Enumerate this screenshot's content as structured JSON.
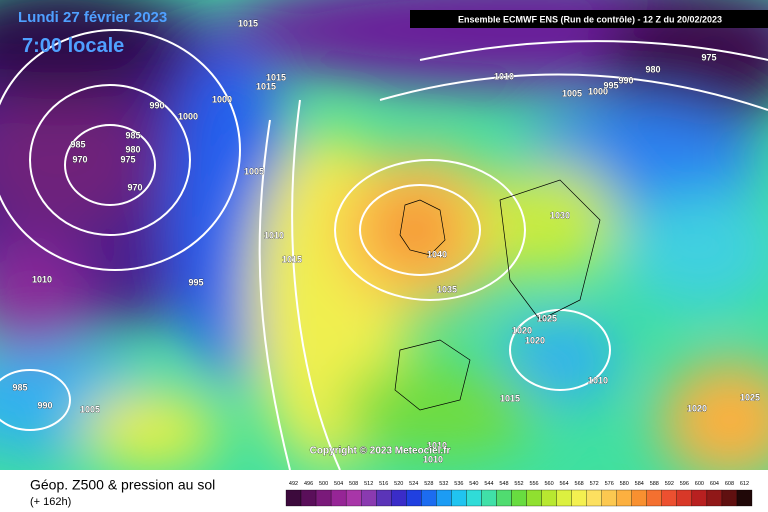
{
  "header": {
    "date": "Lundi 27 février 2023",
    "time": "7:00 locale",
    "run": "Ensemble ECMWF ENS  (Run de contrôle)  -  12 Z du 20/02/2023"
  },
  "copyright": "Copyright © 2023 Meteociel.fr",
  "footer": {
    "title": "Géop. Z500 & pression au sol",
    "lead": "(+ 162h)"
  },
  "isobar_labels": [
    "1015",
    "1015",
    "1015",
    "1000",
    "990",
    "1000",
    "985",
    "985",
    "980",
    "970",
    "975",
    "970",
    "1005",
    "1010",
    "1015",
    "995",
    "1010",
    "1040",
    "1035",
    "1030",
    "1010",
    "1005",
    "1000",
    "995",
    "990",
    "980",
    "975",
    "1025",
    "1020",
    "1020",
    "1010",
    "1015",
    "1020",
    "1025",
    "1010",
    "1010",
    "985",
    "990",
    "1005"
  ],
  "colorbar": {
    "labels": [
      492,
      496,
      500,
      504,
      508,
      512,
      516,
      520,
      524,
      528,
      532,
      536,
      540,
      544,
      548,
      552,
      556,
      560,
      564,
      568,
      572,
      576,
      580,
      584,
      588,
      592,
      596,
      600,
      604,
      608,
      612
    ],
    "colors": [
      "#3c0a3c",
      "#5a0f5a",
      "#7a1a7a",
      "#962596",
      "#a836a8",
      "#8a3ab0",
      "#5b34b8",
      "#3a2cc8",
      "#2040e0",
      "#1c6cf0",
      "#1c9cf4",
      "#20c4f0",
      "#30dcd8",
      "#40e0a8",
      "#50dc70",
      "#68dc40",
      "#90e030",
      "#b8e830",
      "#dcf040",
      "#f4f050",
      "#fce060",
      "#fcc850",
      "#fcb040",
      "#f89030",
      "#f47030",
      "#ec5030",
      "#d83828",
      "#b82020",
      "#901818",
      "#601010",
      "#200808"
    ]
  }
}
